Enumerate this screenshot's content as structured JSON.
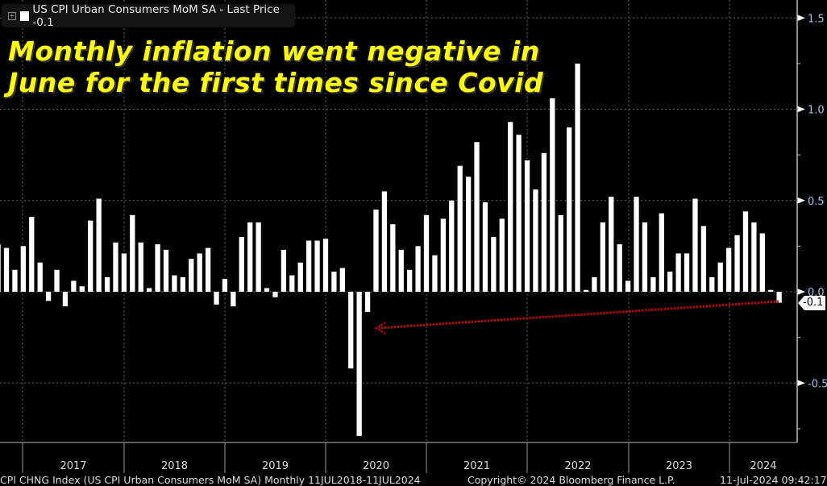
{
  "legend": {
    "label": "US CPI Urban Consumers MoM SA - Last Price -0.1",
    "expand_icon": "plus-box-icon"
  },
  "headline": [
    "Monthly inflation went negative in",
    "June for the first times since Covid"
  ],
  "footer": {
    "index": "CPI CHNG Index (US CPI Urban Consumers MoM SA)  Monthly 11JUL2018-11JUL2024",
    "copyright": "Copyright© 2024 Bloomberg Finance L.P.",
    "timestamp": "11-Jul-2024 09:42:17"
  },
  "last_value_tag": "-0.1",
  "colors": {
    "bars": "#ffffff",
    "headline": "#ffff00",
    "arrow": "#e00000",
    "axis_text": "#9ec3e6"
  },
  "chart_data": {
    "type": "bar",
    "title": "US CPI Urban Consumers MoM SA",
    "xlabel": "",
    "ylabel": "",
    "ylim": [
      -0.83,
      1.6
    ],
    "yticks": [
      1.5,
      1.0,
      0.5,
      0.0,
      -0.5
    ],
    "ytick_labels": [
      "1.5",
      "1.0",
      "0.5",
      "0.0",
      "-0.5"
    ],
    "year_labels": [
      "2017",
      "2018",
      "2019",
      "2020",
      "2021",
      "2022",
      "2023",
      "2024"
    ],
    "start_month": "2016-09",
    "end_month": "2024-06",
    "grid": true,
    "legend_position": "top-left",
    "annotation": "red dotted arrow from June 2024 bar back to the 2020 Covid dip",
    "values": [
      0.26,
      0.24,
      0.12,
      0.25,
      0.41,
      0.16,
      -0.05,
      0.12,
      -0.08,
      0.06,
      0.03,
      0.39,
      0.51,
      0.08,
      0.27,
      0.21,
      0.42,
      0.27,
      0.02,
      0.26,
      0.23,
      0.09,
      0.08,
      0.18,
      0.21,
      0.24,
      -0.07,
      0.07,
      -0.08,
      0.3,
      0.38,
      0.38,
      0.02,
      -0.03,
      0.23,
      0.09,
      0.16,
      0.28,
      0.28,
      0.29,
      0.11,
      0.13,
      -0.42,
      -0.79,
      -0.11,
      0.45,
      0.55,
      0.37,
      0.23,
      0.12,
      0.25,
      0.42,
      0.2,
      0.4,
      0.5,
      0.69,
      0.63,
      0.82,
      0.49,
      0.3,
      0.4,
      0.93,
      0.86,
      0.72,
      0.56,
      0.76,
      1.06,
      0.42,
      0.9,
      1.25,
      0.01,
      0.08,
      0.38,
      0.52,
      0.26,
      0.06,
      0.52,
      0.38,
      0.08,
      0.43,
      0.11,
      0.21,
      0.21,
      0.51,
      0.36,
      0.08,
      0.16,
      0.24,
      0.31,
      0.44,
      0.38,
      0.32,
      0.01,
      -0.06
    ]
  }
}
